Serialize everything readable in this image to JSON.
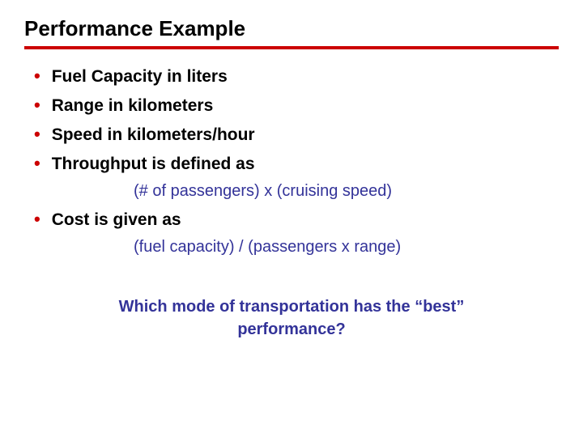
{
  "title": "Performance Example",
  "bullets": {
    "item1": "Fuel Capacity in liters",
    "item2": "Range in kilometers",
    "item3": "Speed in kilometers/hour",
    "item4": "Throughput is defined as",
    "item4_sub": "(# of passengers) x (cruising speed)",
    "item5": "Cost is given as",
    "item5_sub": "(fuel capacity) / (passengers x range)"
  },
  "question": "Which mode of transportation has the “best” performance?",
  "colors": {
    "accent": "#cc0000",
    "subtext": "#333399",
    "text": "#000000"
  }
}
